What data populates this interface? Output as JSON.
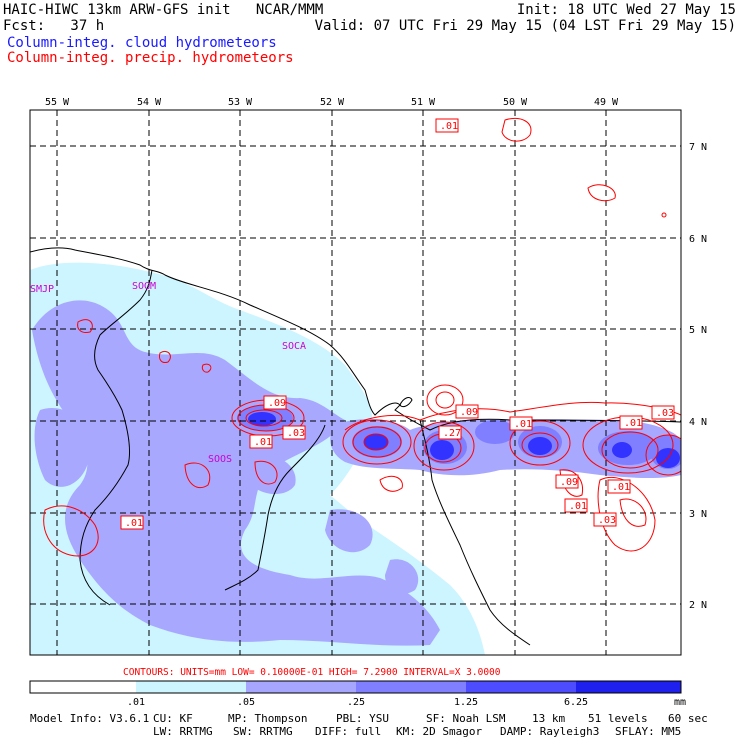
{
  "header": {
    "title_left": "HAIC-HIWC 13km ARW-GFS init   NCAR/MMM",
    "init": "Init: 18 UTC Wed 27 May 15",
    "fcst": "Fcst:   37 h",
    "valid": "Valid: 07 UTC Fri 29 May 15 (04 LST Fri 29 May 15)",
    "field_cloud": "Column-integ. cloud hydrometeors",
    "field_precip": "Column-integ. precip. hydrometeors"
  },
  "colors": {
    "cloud_text": "#1a1aff",
    "precip_contour": "#ff0000",
    "shade_levels": [
      "#ffffff",
      "#ccf5ff",
      "#a6a6ff",
      "#7f7fff",
      "#5959ff",
      "#2626ff",
      "#1a1ae6"
    ]
  },
  "map": {
    "lon_labels": [
      "55 W",
      "54 W",
      "53 W",
      "52 W",
      "51 W",
      "50 W",
      "49 W"
    ],
    "lat_labels": [
      "7 N",
      "6 N",
      "5 N",
      "4 N",
      "3 N",
      "2 N"
    ],
    "stations": [
      "SMJP",
      "SOGM",
      "SOCA",
      "SOOS"
    ],
    "contour_labels": [
      ".01",
      ".09",
      ".01",
      ".03",
      ".09",
      ".27",
      ".01",
      ".03",
      ".01",
      ".09",
      ".01",
      ".01",
      ".03",
      ".01"
    ]
  },
  "contours_info": "CONTOURS:  UNITS=mm  LOW= 0.10000E-01  HIGH=  7.2900     INTERVAL=X  3.0000",
  "colorbar": {
    "tick_labels": [
      ".01",
      ".05",
      ".25",
      "1.25",
      "6.25"
    ],
    "units": "mm"
  },
  "model_info": {
    "line1": [
      "Model Info: V3.6.1",
      "CU: KF",
      "MP: Thompson",
      "PBL: YSU",
      "SF: Noah LSM",
      "13 km",
      "51 levels",
      "60 sec"
    ],
    "line2": [
      "LW: RRTMG",
      "SW: RRTMG",
      "DIFF: full",
      "KM: 2D Smagor",
      "DAMP: Rayleigh3",
      "SFLAY: MM5"
    ]
  }
}
